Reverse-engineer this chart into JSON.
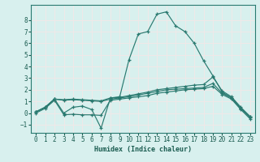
{
  "xlabel": "Humidex (Indice chaleur)",
  "background_color": "#d8f0ee",
  "grid_color": "#f0e8e8",
  "line_color": "#2a7a70",
  "text_color": "#1a5c50",
  "xlim": [
    -0.5,
    23.5
  ],
  "ylim": [
    -1.7,
    9.3
  ],
  "xticks": [
    0,
    1,
    2,
    3,
    4,
    5,
    6,
    7,
    8,
    9,
    10,
    11,
    12,
    13,
    14,
    15,
    16,
    17,
    18,
    19,
    20,
    21,
    22,
    23
  ],
  "yticks": [
    -1,
    0,
    1,
    2,
    3,
    4,
    5,
    6,
    7,
    8
  ],
  "series": [
    {
      "x": [
        0,
        1,
        2,
        3,
        4,
        5,
        6,
        7,
        8,
        9,
        10,
        11,
        12,
        13,
        14,
        15,
        16,
        17,
        18,
        19,
        20,
        21,
        22,
        23
      ],
      "y": [
        0.1,
        0.5,
        1.2,
        0.0,
        0.5,
        0.6,
        0.3,
        -1.3,
        1.3,
        1.4,
        4.6,
        6.8,
        7.0,
        8.5,
        8.7,
        7.5,
        7.0,
        6.0,
        4.5,
        3.2,
        1.8,
        1.3,
        0.4,
        -0.3
      ]
    },
    {
      "x": [
        0,
        1,
        2,
        3,
        4,
        5,
        6,
        7,
        8,
        9,
        10,
        11,
        12,
        13,
        14,
        15,
        16,
        17,
        18,
        19,
        20,
        21,
        22,
        23
      ],
      "y": [
        0.1,
        0.5,
        1.2,
        1.15,
        1.2,
        1.15,
        1.1,
        1.05,
        1.3,
        1.35,
        1.5,
        1.65,
        1.8,
        2.0,
        2.1,
        2.2,
        2.3,
        2.4,
        2.45,
        3.1,
        1.9,
        1.4,
        0.5,
        -0.3
      ]
    },
    {
      "x": [
        0,
        1,
        2,
        3,
        4,
        5,
        6,
        7,
        8,
        9,
        10,
        11,
        12,
        13,
        14,
        15,
        16,
        17,
        18,
        19,
        20,
        21,
        22,
        23
      ],
      "y": [
        0.1,
        0.5,
        1.2,
        1.1,
        1.15,
        1.1,
        1.05,
        1.0,
        1.2,
        1.3,
        1.4,
        1.55,
        1.7,
        1.85,
        2.0,
        2.05,
        2.1,
        2.15,
        2.2,
        2.55,
        1.7,
        1.3,
        0.4,
        -0.4
      ]
    },
    {
      "x": [
        0,
        1,
        2,
        3,
        4,
        5,
        6,
        7,
        8,
        9,
        10,
        11,
        12,
        13,
        14,
        15,
        16,
        17,
        18,
        19,
        20,
        21,
        22,
        23
      ],
      "y": [
        0.0,
        0.4,
        1.1,
        -0.15,
        -0.1,
        -0.15,
        -0.15,
        -0.2,
        1.1,
        1.2,
        1.3,
        1.4,
        1.5,
        1.7,
        1.8,
        1.9,
        2.0,
        2.05,
        2.1,
        2.3,
        1.6,
        1.2,
        0.3,
        -0.5
      ]
    }
  ]
}
